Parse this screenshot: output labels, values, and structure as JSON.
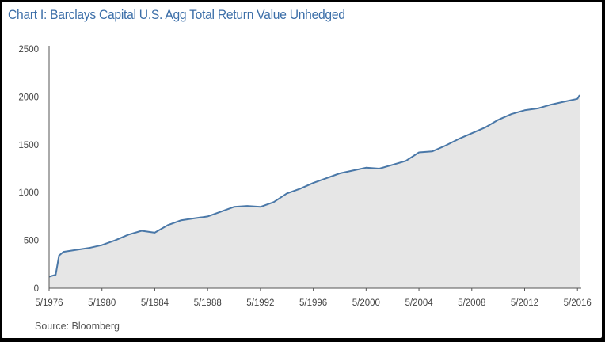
{
  "chart_data": {
    "type": "area",
    "title": "Chart I: Barclays Capital U.S. Agg Total Return Value Unhedged",
    "source": "Source: Bloomberg",
    "xlabel": "",
    "ylabel": "",
    "x_tick_labels": [
      "5/1976",
      "5/1980",
      "5/1984",
      "5/1988",
      "5/1992",
      "5/1996",
      "5/2000",
      "5/2004",
      "5/2008",
      "5/2012",
      "5/2016"
    ],
    "y_tick_labels": [
      "0",
      "500",
      "1000",
      "1500",
      "2000",
      "2500"
    ],
    "ylim": [
      0,
      2500
    ],
    "xlim": [
      "1976-05",
      "2016-07"
    ],
    "grid": false,
    "legend": "none",
    "colors": {
      "line": "#4a78a8",
      "fill": "#e6e6e6",
      "axis": "#555555",
      "title": "#3b6ea8"
    },
    "series": [
      {
        "x": [
          "1976-05",
          "1976-11",
          "1977-02",
          "1977-06",
          "1978-05",
          "1979-05",
          "1980-05",
          "1981-05",
          "1982-05",
          "1983-05",
          "1984-05",
          "1985-05",
          "1986-05",
          "1987-05",
          "1988-05",
          "1989-05",
          "1990-05",
          "1991-05",
          "1992-05",
          "1993-05",
          "1994-05",
          "1995-05",
          "1996-05",
          "1997-05",
          "1998-05",
          "1999-05",
          "2000-05",
          "2001-05",
          "2002-05",
          "2003-05",
          "2004-05",
          "2005-05",
          "2006-05",
          "2007-05",
          "2008-05",
          "2009-05",
          "2010-05",
          "2011-05",
          "2012-05",
          "2013-05",
          "2014-05",
          "2015-05",
          "2016-05",
          "2016-07"
        ],
        "values": [
          120,
          140,
          340,
          380,
          400,
          420,
          450,
          500,
          560,
          600,
          580,
          660,
          710,
          730,
          750,
          800,
          850,
          860,
          850,
          900,
          990,
          1040,
          1100,
          1150,
          1200,
          1230,
          1260,
          1250,
          1290,
          1330,
          1420,
          1430,
          1490,
          1560,
          1620,
          1680,
          1760,
          1820,
          1860,
          1880,
          1920,
          1950,
          1980,
          2020
        ]
      }
    ]
  }
}
